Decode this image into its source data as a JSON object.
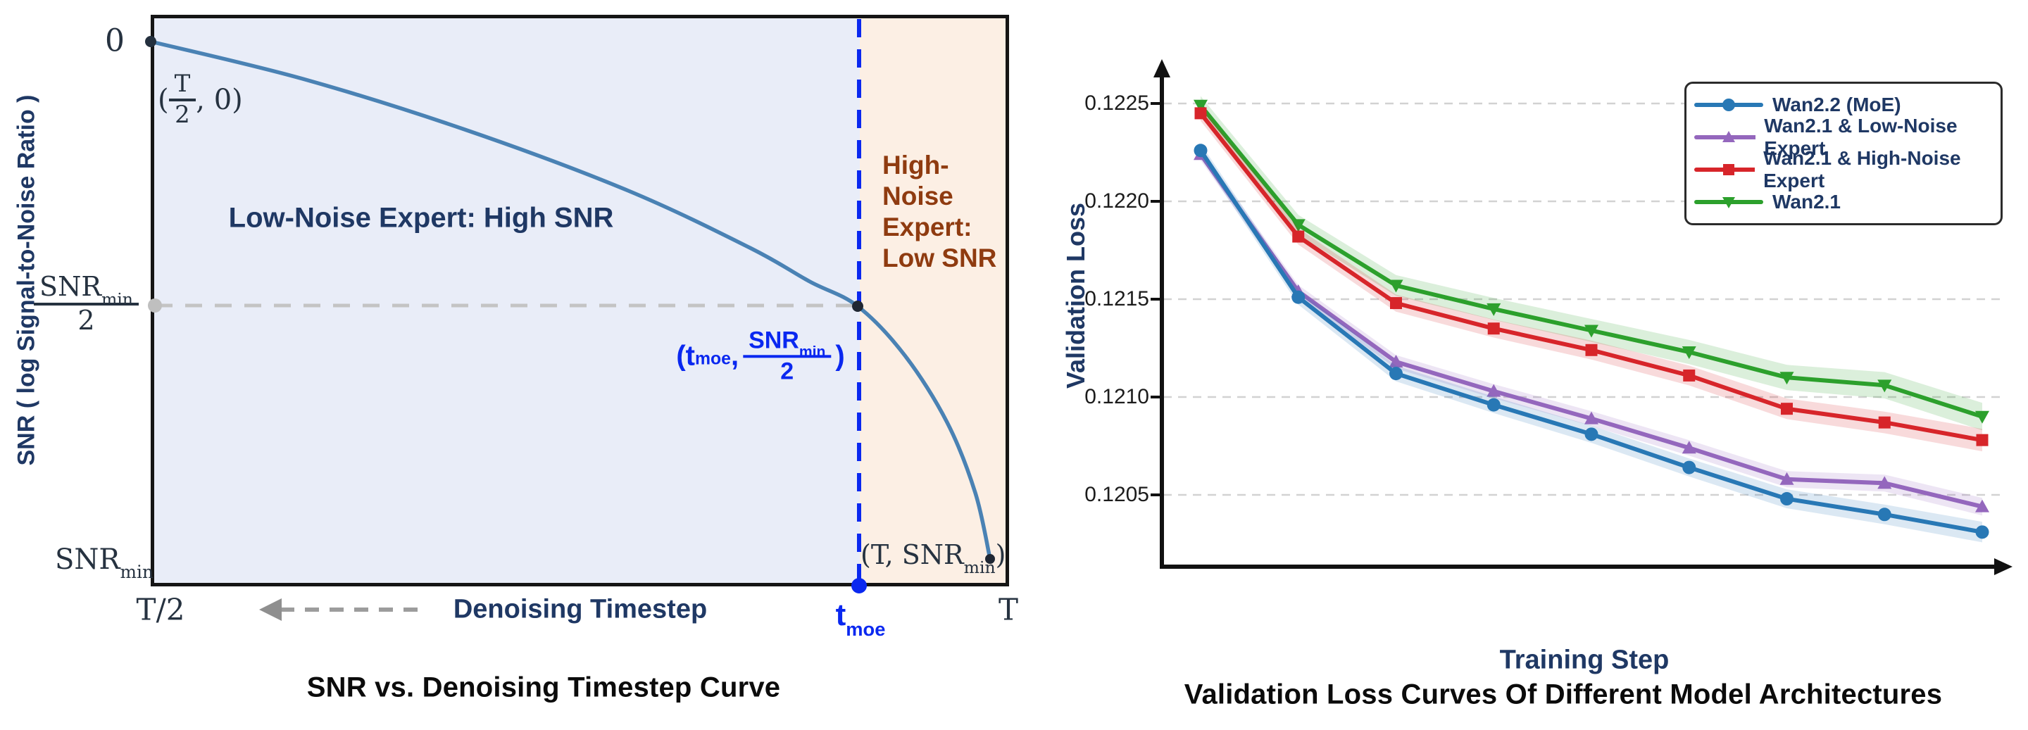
{
  "left_chart": {
    "y_axis_label": "SNR ( log Signal-to-Noise Ratio )",
    "x_axis_label": "Denoising Timestep",
    "region_low_label": "Low-Noise Expert: High SNR",
    "region_high_lines": [
      "High-",
      "Noise",
      "Expert:",
      "Low SNR"
    ],
    "ticks": {
      "zero": "0",
      "snr_base": "SNR",
      "snr_sub": "min",
      "half_den": "2"
    },
    "origin_label": {
      "open": "(",
      "num": "T",
      "den": "2",
      "rest": ", 0)"
    },
    "tmoe_point_label": {
      "open": "(t",
      "sub": "moe",
      "comma": ",",
      "num": "SNR",
      "num_sub": "min",
      "den": "2",
      "close": ")"
    },
    "end_label": {
      "pre": "(T, SNR",
      "sub": "min",
      "post": ")"
    },
    "x_ticks": {
      "left": "T/2",
      "tmoe_base": "t",
      "tmoe_sub": "moe",
      "right": "T"
    }
  },
  "right_chart": {
    "y_axis_label": "Validation Loss",
    "x_axis_label": "Training Step"
  },
  "chart_data": [
    {
      "type": "line",
      "title": "SNR vs. Denoising Timestep Curve",
      "xlabel": "Denoising Timestep",
      "ylabel": "SNR ( log Signal-to-Noise Ratio )",
      "x_tick_labels": [
        "T/2",
        "t_moe",
        "T"
      ],
      "y_tick_labels": [
        "0",
        "SNR_min/2",
        "SNR_min"
      ],
      "curve": "monotonically decreasing log-SNR curve from (T/2, 0) to (T, SNR_min)",
      "key_points": [
        [
          "T/2",
          "0"
        ],
        [
          "t_moe",
          "SNR_min/2"
        ],
        [
          "T",
          "SNR_min"
        ]
      ],
      "regions": [
        {
          "label": "Low-Noise Expert: High SNR",
          "range": "T/2 to t_moe"
        },
        {
          "label": "High-Noise Expert: Low SNR",
          "range": "t_moe to T"
        }
      ]
    },
    {
      "type": "line",
      "title": "Validation Loss Curves Of Different Model Architectures",
      "xlabel": "Training Step",
      "ylabel": "Validation Loss",
      "ylim": [
        0.1202,
        0.1226
      ],
      "yticks": [
        0.1225,
        0.122,
        0.1215,
        0.121,
        0.1205
      ],
      "ytick_labels": [
        "0.1225",
        "0.1220",
        "0.1215",
        "0.1210",
        "0.1205"
      ],
      "x_points": [
        1,
        2,
        3,
        4,
        5,
        6,
        7,
        8,
        9
      ],
      "grid": "dashed horizontal gridlines",
      "legend_position": "upper right",
      "series": [
        {
          "name": "Wan2.2 (MoE)",
          "color": "#2878B5",
          "marker": "circle",
          "values": [
            0.12226,
            0.12151,
            0.12112,
            0.12096,
            0.12081,
            0.12064,
            0.12048,
            0.1204,
            0.12031
          ],
          "band_halfwidth": 4.2e-05
        },
        {
          "name": "Wan2.1 & Low-Noise Expert",
          "color": "#9467BD",
          "marker": "triangle-up",
          "values": [
            0.12224,
            0.12154,
            0.12118,
            0.12103,
            0.12089,
            0.12074,
            0.12058,
            0.12056,
            0.12044
          ],
          "band_halfwidth": 3.6e-05
        },
        {
          "name": "Wan2.1 & High-Noise Expert",
          "color": "#D7252A",
          "marker": "square",
          "values": [
            0.12245,
            0.12182,
            0.12148,
            0.12135,
            0.12124,
            0.12111,
            0.12094,
            0.12087,
            0.12078
          ],
          "band_halfwidth": 4.6e-05
        },
        {
          "name": "Wan2.1",
          "color": "#2CA02C",
          "marker": "triangle-down",
          "values": [
            0.12249,
            0.12188,
            0.12157,
            0.12145,
            0.12134,
            0.12123,
            0.1211,
            0.12106,
            0.1209
          ],
          "band_halfwidth": 5.6e-05
        }
      ]
    }
  ],
  "colors": {
    "navy_text": "#1F3864",
    "ink_serif": "#263240",
    "accent_blue": "#0A28F0",
    "brown_text": "#8F3B10",
    "curve_blue": "#4A82B4",
    "left_bg_low_noise": "#E9EDF8",
    "left_bg_high_noise": "#FCEFE4",
    "gray_dashed": "#C4C4C4",
    "series_blue": "#2878B5",
    "series_purple": "#9467BD",
    "series_red": "#D7252A",
    "series_green": "#2CA02C"
  }
}
